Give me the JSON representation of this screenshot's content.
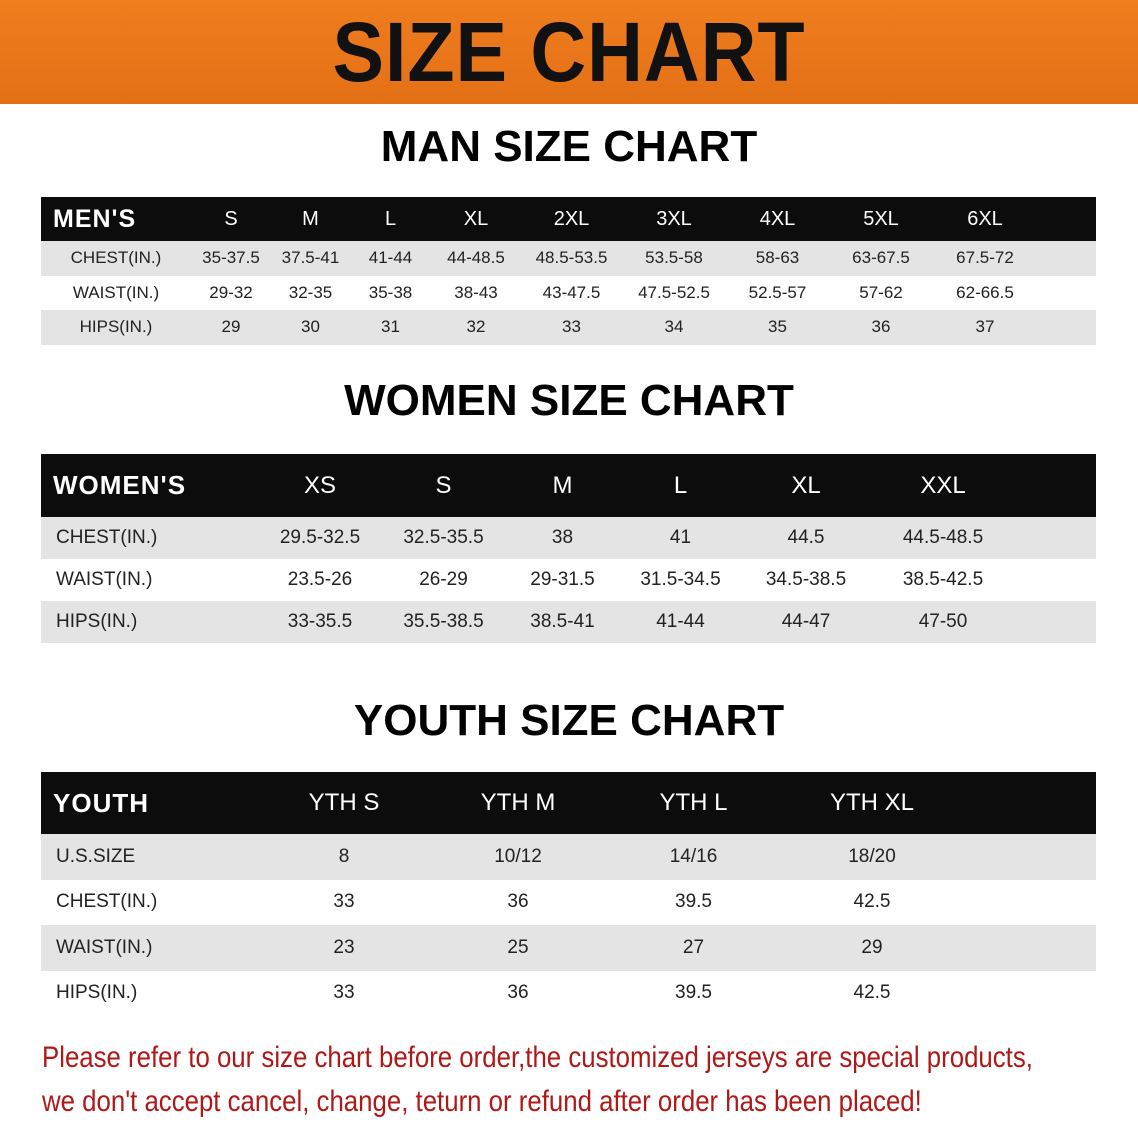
{
  "banner_title": "SIZE CHART",
  "men": {
    "title": "MAN SIZE CHART",
    "header": [
      "MEN'S",
      "S",
      "M",
      "L",
      "XL",
      "2XL",
      "3XL",
      "4XL",
      "5XL",
      "6XL"
    ],
    "rows": [
      [
        "CHEST(IN.)",
        "35-37.5",
        "37.5-41",
        "41-44",
        "44-48.5",
        "48.5-53.5",
        "53.5-58",
        "58-63",
        "63-67.5",
        "67.5-72"
      ],
      [
        "WAIST(IN.)",
        "29-32",
        "32-35",
        "35-38",
        "38-43",
        "43-47.5",
        "47.5-52.5",
        "52.5-57",
        "57-62",
        "62-66.5"
      ],
      [
        "HIPS(IN.)",
        "29",
        "30",
        "31",
        "32",
        "33",
        "34",
        "35",
        "36",
        "37"
      ]
    ]
  },
  "women": {
    "title": "WOMEN SIZE CHART",
    "header": [
      "WOMEN'S",
      "XS",
      "S",
      "M",
      "L",
      "XL",
      "XXL"
    ],
    "rows": [
      [
        "CHEST(IN.)",
        "29.5-32.5",
        "32.5-35.5",
        "38",
        "41",
        "44.5",
        "44.5-48.5"
      ],
      [
        "WAIST(IN.)",
        "23.5-26",
        "26-29",
        "29-31.5",
        "31.5-34.5",
        "34.5-38.5",
        "38.5-42.5"
      ],
      [
        "HIPS(IN.)",
        "33-35.5",
        "35.5-38.5",
        "38.5-41",
        "41-44",
        "44-47",
        "47-50"
      ]
    ]
  },
  "youth": {
    "title": "YOUTH SIZE CHART",
    "header": [
      "YOUTH",
      "YTH S",
      "YTH M",
      "YTH L",
      "YTH XL"
    ],
    "rows": [
      [
        "U.S.SIZE",
        "8",
        "10/12",
        "14/16",
        "18/20"
      ],
      [
        "CHEST(IN.)",
        "33",
        "36",
        "39.5",
        "42.5"
      ],
      [
        "WAIST(IN.)",
        "23",
        "25",
        "27",
        "29"
      ],
      [
        "HIPS(IN.)",
        "33",
        "36",
        "39.5",
        "42.5"
      ]
    ]
  },
  "notice": {
    "line1": "Please refer to our size chart before order,the customized jerseys are special products,",
    "line2": "we don't accept cancel, change, teturn or refund after order has been placed!"
  },
  "colors": {
    "banner": "#e8761c",
    "header_row": "#0c0c0c",
    "stripe": "#e4e4e4",
    "notice_text": "#b01818"
  }
}
